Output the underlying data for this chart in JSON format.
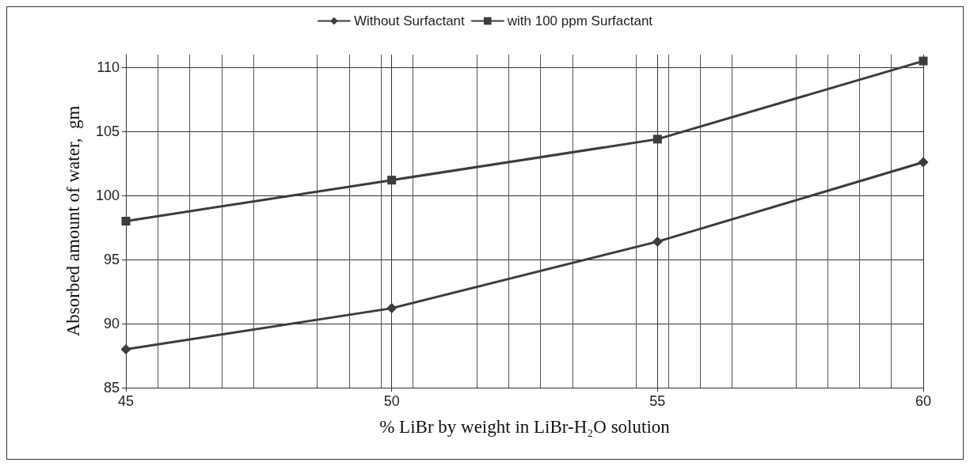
{
  "chart_data": {
    "type": "line",
    "xlabel": "% LiBr by weight in LiBr-H₂O solution",
    "ylabel": "Absorbed amount of water,  gm",
    "x": [
      45,
      50,
      55,
      60
    ],
    "series": [
      {
        "name": "Without Surfactant",
        "color": "#3c3c3c",
        "marker": "diamond",
        "values": [
          88,
          91.2,
          96.4,
          102.6
        ]
      },
      {
        "name": "with 100 ppm Surfactant",
        "color": "#3c3c3c",
        "marker": "square",
        "values": [
          98,
          101.2,
          104.4,
          110.5
        ]
      }
    ],
    "xlim": [
      45,
      60
    ],
    "xticks": [
      45,
      50,
      55,
      60
    ],
    "ylim": [
      85,
      111
    ],
    "yticks": [
      85,
      90,
      95,
      100,
      105,
      110
    ],
    "grid": true,
    "legend": "top",
    "line_style": "solid"
  }
}
